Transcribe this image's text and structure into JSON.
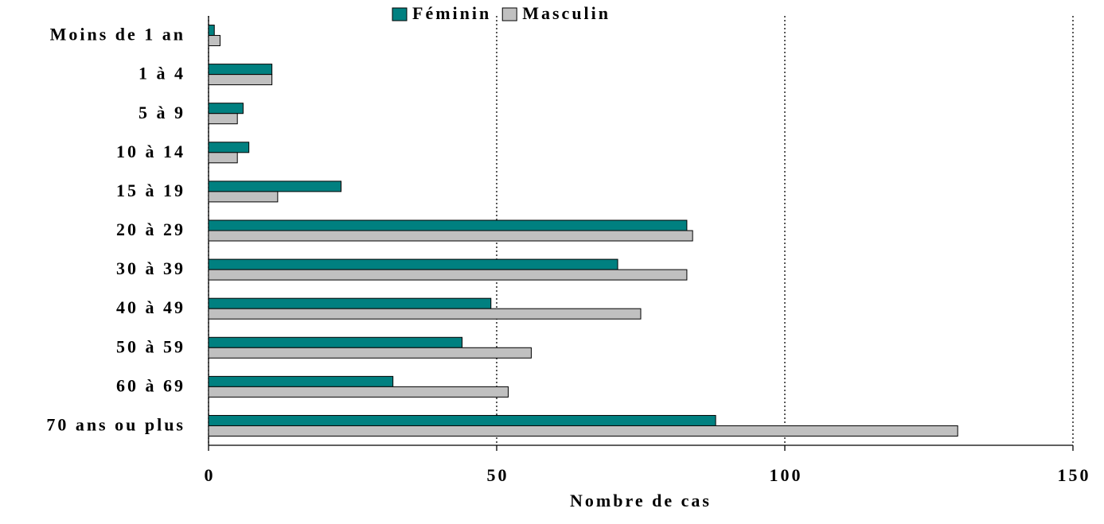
{
  "chart_data": {
    "type": "barh",
    "categories": [
      "Moins de 1 an",
      "1 à 4",
      "5 à 9",
      "10 à 14",
      "15 à 19",
      "20 à 29",
      "30 à 39",
      "40 à 49",
      "50 à 59",
      "60 à 69",
      "70 ans ou plus"
    ],
    "series": [
      {
        "name": "Féminin",
        "color": "#008080",
        "values": [
          1,
          11,
          6,
          7,
          23,
          83,
          71,
          49,
          44,
          32,
          88
        ]
      },
      {
        "name": "Masculin",
        "color": "#c0c0c0",
        "values": [
          2,
          11,
          5,
          5,
          12,
          84,
          83,
          75,
          56,
          52,
          130
        ]
      }
    ],
    "x_label": "Nombre de cas",
    "xlim": [
      0,
      150
    ],
    "xticks": [
      0,
      50,
      100,
      150
    ],
    "grid": true,
    "legend": "top"
  }
}
